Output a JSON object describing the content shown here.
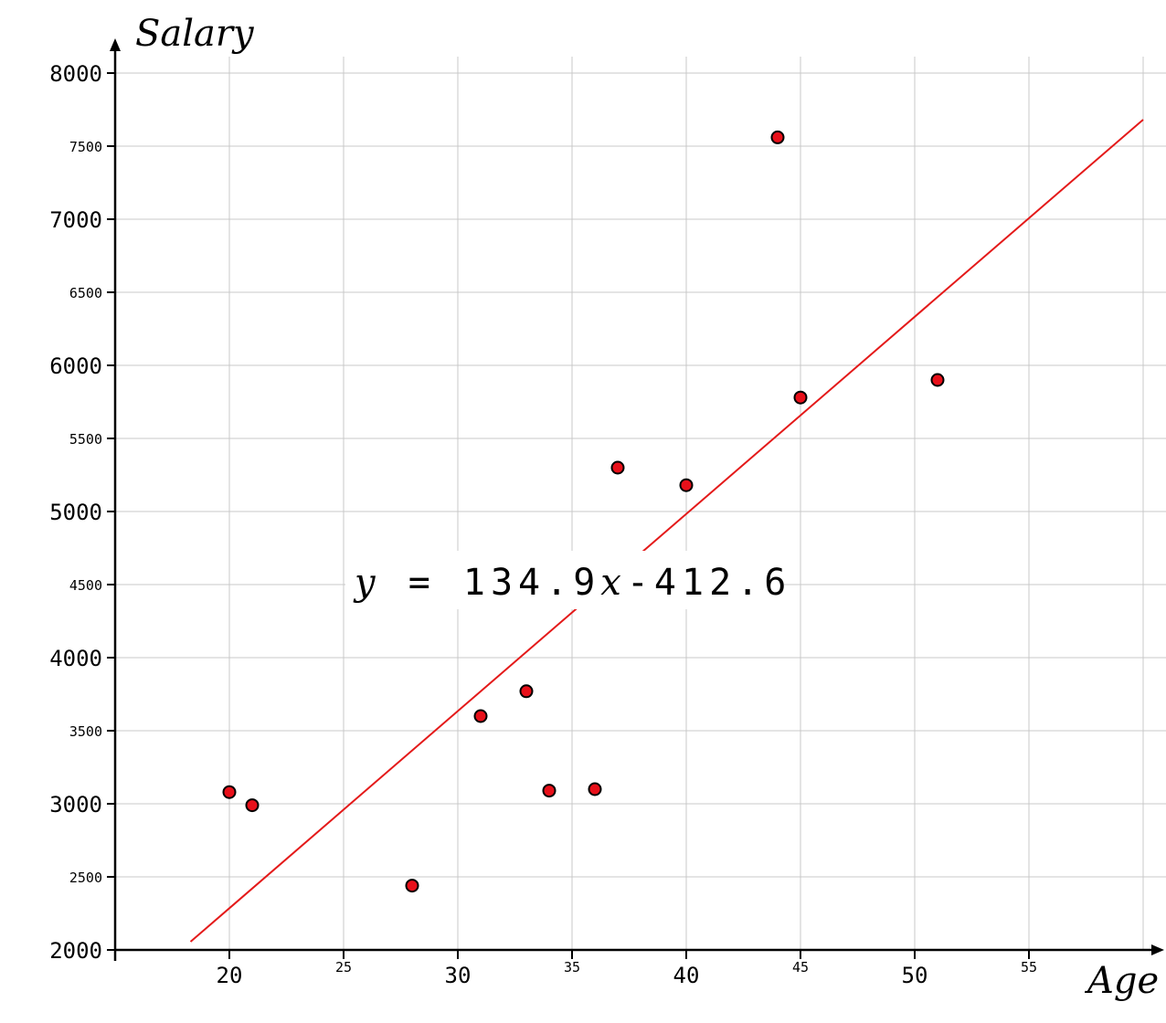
{
  "chart_data": {
    "type": "scatter",
    "xlabel": "Age",
    "ylabel": "Salary",
    "xlim": [
      15,
      60
    ],
    "ylim": [
      2000,
      8000
    ],
    "grid": true,
    "x_major_ticks": [
      20,
      30,
      40,
      50
    ],
    "x_minor_ticks": [
      25,
      35,
      45,
      55
    ],
    "y_major_ticks": [
      2000,
      3000,
      4000,
      5000,
      6000,
      7000,
      8000
    ],
    "y_minor_ticks": [
      2500,
      3500,
      4500,
      5500,
      6500,
      7500
    ],
    "points": [
      {
        "x": 20,
        "y": 3080
      },
      {
        "x": 21,
        "y": 2990
      },
      {
        "x": 28,
        "y": 2440
      },
      {
        "x": 31,
        "y": 3600
      },
      {
        "x": 33,
        "y": 3770
      },
      {
        "x": 34,
        "y": 3090
      },
      {
        "x": 36,
        "y": 3100
      },
      {
        "x": 37,
        "y": 5300
      },
      {
        "x": 40,
        "y": 5180
      },
      {
        "x": 44,
        "y": 7560
      },
      {
        "x": 45,
        "y": 5780
      },
      {
        "x": 51,
        "y": 5900
      }
    ],
    "trendline": {
      "slope": 134.9,
      "intercept": -412.6,
      "x_range": [
        18.3,
        60
      ],
      "equation": {
        "lhs": "y",
        "eq": " = ",
        "coef": "134.9",
        "var": "x",
        "rest": "-412.6"
      }
    }
  }
}
